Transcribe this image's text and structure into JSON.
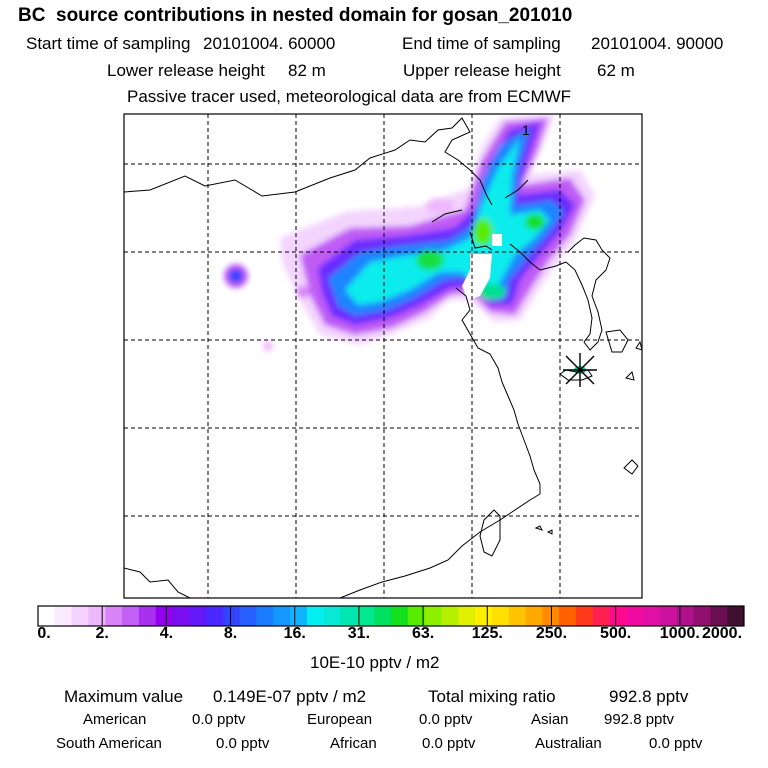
{
  "header": {
    "title": "BC  source contributions in nested domain for gosan_201010",
    "start_label": "Start time of sampling",
    "start_value": "20101004. 60000",
    "end_label": "End time of sampling",
    "end_value": "20101004. 90000",
    "lower_label": "Lower release height",
    "lower_value": "82 m",
    "upper_label": "Upper release height",
    "upper_value": "62 m",
    "tracer_line": "Passive tracer used, meteorological data are from ECMWF"
  },
  "map": {
    "contour_label": "1",
    "receptor_marker": "star-icon"
  },
  "colorbar": {
    "tick_labels": [
      "0.",
      "2.",
      "4.",
      "8.",
      "16.",
      "31.",
      "63.",
      "125.",
      "250.",
      "500.",
      "1000.",
      "2000."
    ],
    "colors": [
      "#ffffff",
      "#fbeaff",
      "#f5d2fd",
      "#eeb8fc",
      "#d884f7",
      "#c060f5",
      "#aa30f0",
      "#9400ee",
      "#7a10f0",
      "#6418f8",
      "#4b28ff",
      "#3244ff",
      "#2860ff",
      "#1a7cff",
      "#1498ff",
      "#10b4ff",
      "#04f0f0",
      "#08e8d4",
      "#00e6b0",
      "#00e890",
      "#00e060",
      "#14e020",
      "#58ec00",
      "#8cf000",
      "#b4f000",
      "#e0f000",
      "#fff000",
      "#ffde00",
      "#ffc400",
      "#ffa800",
      "#ff8a00",
      "#ff6000",
      "#ff3a1a",
      "#ff2050",
      "#ff0a8c",
      "#f00aa0",
      "#e010a6",
      "#cc10a0",
      "#b0108c",
      "#90106e",
      "#6a1050",
      "#401030"
    ],
    "units": "10E-10 pptv / m2"
  },
  "footer": {
    "max_label": "Maximum value",
    "max_value": "0.149E-07 pptv / m2",
    "total_label": "Total mixing ratio",
    "total_value": "992.8 pptv",
    "american_label": "American",
    "american_value": "0.0 pptv",
    "european_label": "European",
    "european_value": "0.0 pptv",
    "asian_label": "Asian",
    "asian_value": "992.8 pptv",
    "south_american_label": "South American",
    "south_american_value": "0.0 pptv",
    "african_label": "African",
    "african_value": "0.0 pptv",
    "australian_label": "Australian",
    "australian_value": "0.0 pptv"
  }
}
